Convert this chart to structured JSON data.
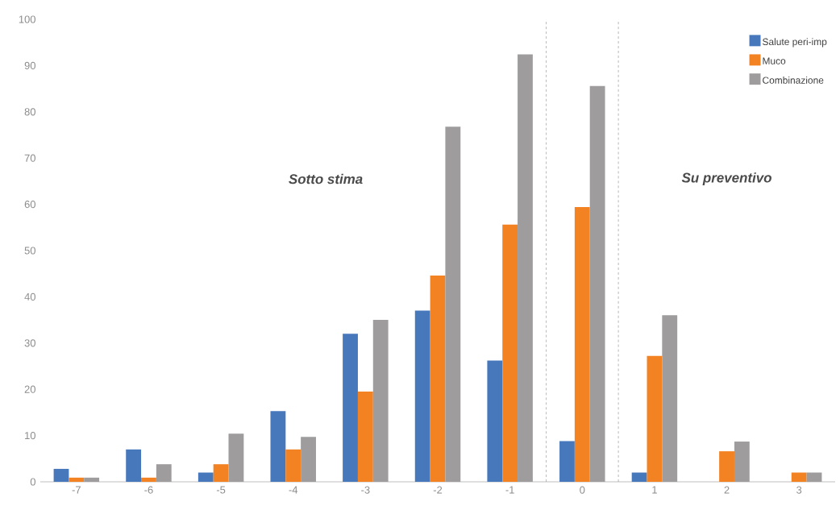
{
  "chart_data": {
    "type": "bar",
    "x": [
      -7,
      -6,
      -5,
      -4,
      -3,
      -2,
      -1,
      0,
      1,
      2,
      3
    ],
    "xlim": [
      -7.5,
      3.5
    ],
    "xticks": [
      -7,
      -6,
      -5,
      -4,
      -3,
      -2,
      -1,
      0,
      1,
      2,
      3
    ],
    "ylim": [
      0,
      100
    ],
    "yticks": [
      0,
      10,
      20,
      30,
      40,
      50,
      60,
      70,
      80,
      90,
      100
    ],
    "series": [
      {
        "name": "Salute peri-imp",
        "color": "#4878bc",
        "values": [
          2.8,
          7,
          2,
          15.3,
          32,
          37,
          26.2,
          8.8,
          2,
          0,
          0
        ]
      },
      {
        "name": "Muco",
        "color": "#f28222",
        "values": [
          0.9,
          0.9,
          3.8,
          7,
          19.5,
          44.6,
          55.6,
          59.4,
          27.2,
          6.6,
          2
        ]
      },
      {
        "name": "Combinazione",
        "color": "#9e9c9d",
        "values": [
          0.9,
          3.8,
          10.4,
          9.7,
          35,
          76.8,
          92.4,
          85.6,
          36,
          8.7,
          2
        ]
      }
    ],
    "ref_lines": [
      {
        "axis": "x",
        "value": -0.5,
        "color": "#a6a6a6",
        "line_style": "dashed"
      },
      {
        "axis": "x",
        "value": 0.5,
        "color": "#a6a6a6",
        "line_style": "dashed"
      }
    ],
    "annotations": [
      "Sotto stima",
      "Su preventivo"
    ],
    "legend": "top right",
    "grid": false
  }
}
